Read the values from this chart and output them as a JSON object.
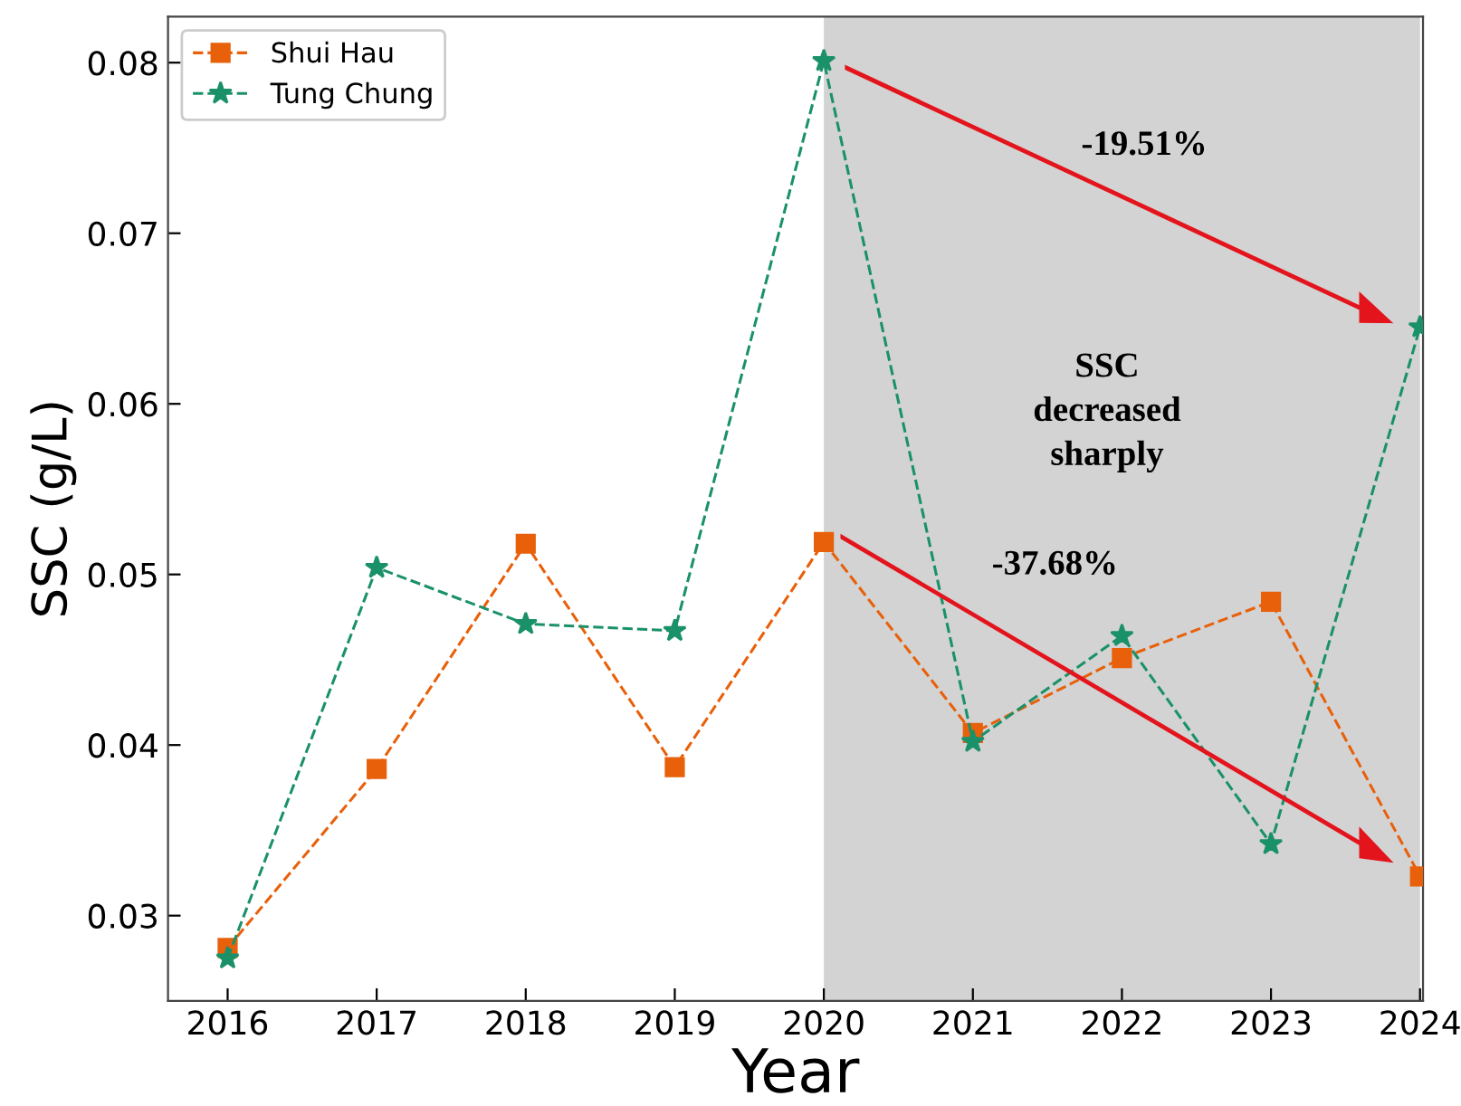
{
  "chart_data": {
    "type": "line",
    "xlabel": "Year",
    "ylabel": "SSC (g/L)",
    "x": [
      2016,
      2017,
      2018,
      2019,
      2020,
      2021,
      2022,
      2023,
      2024
    ],
    "series": [
      {
        "name": "Shui Hau",
        "color": "#e8600a",
        "marker": "square",
        "values": [
          0.0281,
          0.0386,
          0.0518,
          0.0387,
          0.0519,
          0.0407,
          0.0451,
          0.0484,
          0.0323
        ]
      },
      {
        "name": "Tung Chung",
        "color": "#1a9168",
        "marker": "star",
        "values": [
          0.0275,
          0.0504,
          0.0471,
          0.0467,
          0.0801,
          0.0402,
          0.0464,
          0.0342,
          0.0645
        ]
      }
    ],
    "line_style": "dashed",
    "xlim": [
      2015.6,
      2024.02
    ],
    "ylim": [
      0.025,
      0.0827
    ],
    "xticks": [
      2016,
      2017,
      2018,
      2019,
      2020,
      2021,
      2022,
      2023,
      2024
    ],
    "yticks": [
      0.03,
      0.04,
      0.05,
      0.06,
      0.07,
      0.08
    ],
    "bands": [
      {
        "axis": "x",
        "from": 2020,
        "to": 2024,
        "color": "#d3d3d3"
      }
    ],
    "annotations": [
      "-19.51%",
      "SSC\ndecreased\nsharply",
      "-37.68%"
    ],
    "grid": false,
    "legend": "top left"
  }
}
